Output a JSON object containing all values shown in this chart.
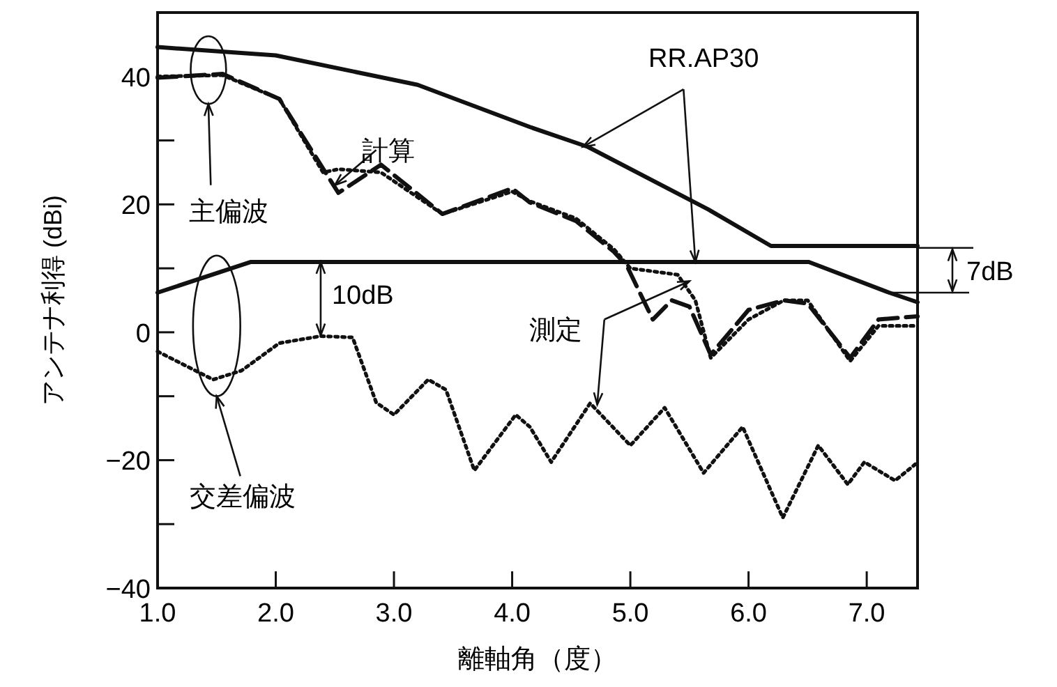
{
  "chart_data": {
    "type": "line",
    "xlabel": "離軸角（度）",
    "ylabel": "アンテナ利得 (dBi)",
    "xlim": [
      1.0,
      7.43
    ],
    "ylim": [
      -40,
      50
    ],
    "xticks": [
      {
        "value": 1,
        "label": "1.0"
      },
      {
        "value": 2,
        "label": "2.0"
      },
      {
        "value": 3,
        "label": "3.0"
      },
      {
        "value": 4,
        "label": "4.0"
      },
      {
        "value": 5,
        "label": "5.0"
      },
      {
        "value": 6,
        "label": "6.0"
      },
      {
        "value": 7,
        "label": "7.0"
      }
    ],
    "yticks": [
      {
        "value": -40,
        "label": "−40"
      },
      {
        "value": -30,
        "label": null
      },
      {
        "value": -20,
        "label": "−20"
      },
      {
        "value": -10,
        "label": null
      },
      0,
      {
        "value": 10,
        "label": null
      },
      20,
      {
        "value": 30,
        "label": null
      },
      40
    ],
    "grid": false,
    "series": [
      {
        "color": "#111111",
        "line_style": "solid",
        "x": [
          1.0,
          2.0,
          3.2,
          4.15,
          4.64,
          5.66,
          6.19,
          7.43
        ],
        "values": [
          44.6,
          43.3,
          38.7,
          32.1,
          29,
          19.2,
          13.5,
          13.5
        ]
      },
      {
        "color": "#111111",
        "line_style": "solid",
        "x": [
          1.0,
          1.79,
          6.51,
          7.19,
          7.43
        ],
        "values": [
          6.2,
          11,
          11,
          6.2,
          4.7
        ]
      },
      {
        "color": "#111111",
        "line_style": "dashed",
        "x": [
          1.0,
          1.55,
          2.03,
          2.42,
          2.53,
          2.89,
          3.41,
          4.0,
          4.15,
          4.54,
          4.86,
          4.97,
          5.19,
          5.35,
          5.5,
          5.68,
          6.0,
          6.3,
          6.5,
          6.86,
          7.1,
          7.43
        ],
        "values": [
          39.8,
          40.4,
          36.5,
          25,
          21.8,
          26.2,
          18.5,
          22.5,
          20.3,
          17.4,
          12.6,
          10.4,
          2,
          5,
          4,
          -3.5,
          3.5,
          5,
          4.5,
          -4,
          2,
          2.5
        ]
      },
      {
        "color": "#111111",
        "line_style": "dotted",
        "x": [
          1.0,
          1.55,
          2.03,
          2.4,
          2.53,
          2.89,
          3.41,
          4.0,
          4.15,
          4.54,
          4.86,
          5.0,
          5.2,
          5.4,
          5.55,
          5.68,
          6.0,
          6.3,
          6.5,
          6.86,
          7.1,
          7.43
        ],
        "values": [
          40,
          40.2,
          36.5,
          25,
          25.5,
          25,
          18.5,
          22,
          20.5,
          17.8,
          13,
          10,
          9.5,
          9,
          5,
          -4,
          2,
          5,
          5,
          -4.5,
          1,
          1
        ]
      },
      {
        "color": "#111111",
        "line_style": "dotted",
        "x": [
          1.0,
          1.47,
          1.71,
          2.03,
          2.38,
          2.65,
          2.85,
          3.0,
          3.29,
          3.44,
          3.68,
          4.03,
          4.15,
          4.33,
          4.66,
          5.0,
          5.29,
          5.62,
          5.95,
          6.29,
          6.59,
          6.84,
          6.98,
          7.24,
          7.42
        ],
        "values": [
          -3,
          -7.4,
          -6,
          -1.7,
          -0.6,
          -0.8,
          -11,
          -12.9,
          -7.4,
          -9,
          -21.6,
          -12.9,
          -14.8,
          -20.3,
          -11.1,
          -17.7,
          -11.8,
          -22,
          -14.8,
          -29,
          -17.7,
          -23.8,
          -20.3,
          -23.2,
          -20.5
        ]
      }
    ],
    "annotations": [
      {
        "text": "RR.AP30",
        "x": 4.6,
        "y": 29
      },
      {
        "text": "計算",
        "x": 2.5,
        "y": 23
      },
      {
        "text": "測定",
        "x": 5.5,
        "y": 8
      },
      "主偏波",
      "交差偏波",
      "10dB",
      {
        "text": "7dB",
        "x": 7.19,
        "y": 6.2
      }
    ]
  }
}
